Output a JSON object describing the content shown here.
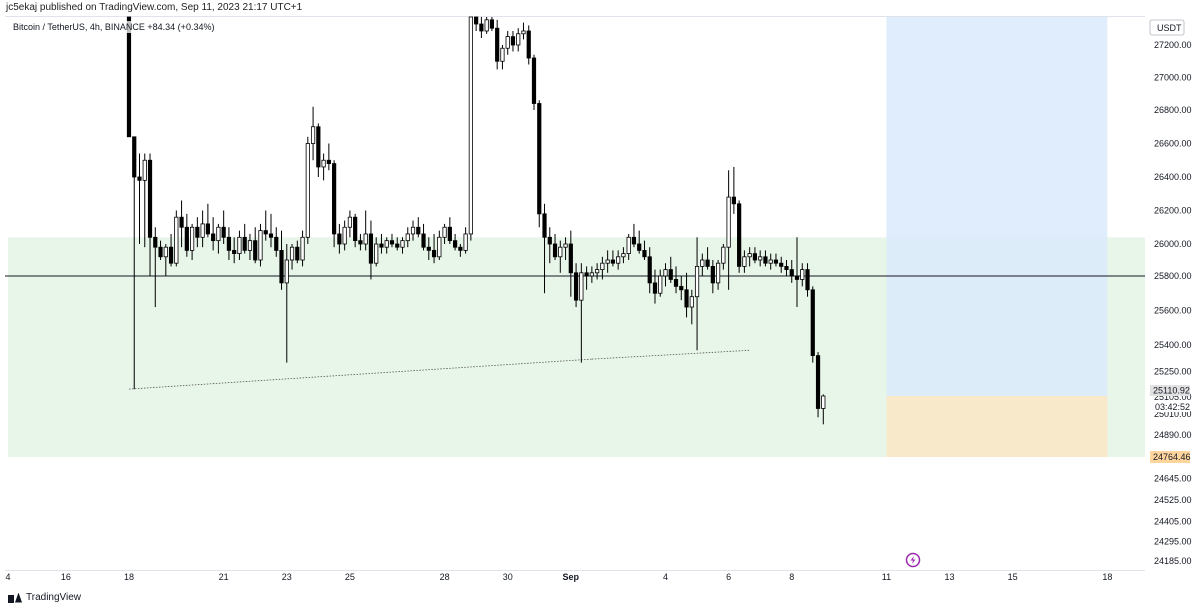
{
  "header": {
    "publisher_text": "jc5ekaj published on TradingView.com, Sep 11, 2023 21:17 UTC+1"
  },
  "legend": {
    "symbol_text": "Bitcoin / TetherUS, 4h, BINANCE",
    "change_text": "+84.34 (+0.34%)"
  },
  "footer": {
    "brand": "TradingView"
  },
  "colors": {
    "candle_up": "#ffffff",
    "candle_down": "#000000",
    "candle_border": "#000000",
    "demand_zone": "#e8f5e9",
    "target_zone": "#dbeafb",
    "stop_zone": "#fbe6c6",
    "price_marker_bg": "#e1e1e1",
    "stop_marker_bg": "#ffd59e"
  },
  "chart_data": {
    "type": "candlestick",
    "price_unit": "USDT",
    "y_ticks": [
      27200,
      27000,
      26800,
      26600,
      26400,
      26200,
      26000,
      25800,
      25600,
      25400,
      25250,
      25105,
      25010,
      24890,
      24645,
      24525,
      24405,
      24295,
      24185
    ],
    "y_tick_labels": [
      "27200.00",
      "27000.00",
      "26800.00",
      "26600.00",
      "26400.00",
      "26200.00",
      "26000.00",
      "25800.00",
      "25600.00",
      "25400.00",
      "25250.00",
      "25105.00",
      "25010.00",
      "24890.00",
      "24645.00",
      "24525.00",
      "24405.00",
      "24295.00",
      "24185.00"
    ],
    "x_ticks": [
      {
        "label": "4",
        "bar": 0
      },
      {
        "label": "16",
        "bar": 11
      },
      {
        "label": "18",
        "bar": 23
      },
      {
        "label": "21",
        "bar": 41
      },
      {
        "label": "23",
        "bar": 53
      },
      {
        "label": "25",
        "bar": 65
      },
      {
        "label": "28",
        "bar": 83
      },
      {
        "label": "30",
        "bar": 95
      },
      {
        "label": "Sep",
        "bar": 107,
        "bold": true
      },
      {
        "label": "4",
        "bar": 125
      },
      {
        "label": "6",
        "bar": 137
      },
      {
        "label": "8",
        "bar": 149
      },
      {
        "label": "11",
        "bar": 167
      },
      {
        "label": "13",
        "bar": 179
      },
      {
        "label": "15",
        "bar": 191
      },
      {
        "label": "18",
        "bar": 209
      }
    ],
    "price_markers": [
      {
        "label": "25110.92",
        "value": 25110.92,
        "style": "current"
      },
      {
        "label": "03:42:52",
        "value": 25050,
        "style": "countdown"
      },
      {
        "label": "24764.46",
        "value": 24764.46,
        "style": "stop"
      }
    ],
    "horizontal_line": 25800,
    "zones": [
      {
        "name": "demand",
        "start_bar": 0,
        "end_bar": 235,
        "top": 26040,
        "bottom": 24764.46
      },
      {
        "name": "target",
        "start_bar": 167,
        "end_bar": 209,
        "top": 27400,
        "bottom": 25110.92
      },
      {
        "name": "stop",
        "start_bar": 167,
        "end_bar": 209,
        "top": 25110.92,
        "bottom": 24764.46
      }
    ],
    "trendlines": [
      {
        "start_bar": 23,
        "start_price": 25150,
        "end_bar": 111,
        "end_price": 25320
      },
      {
        "start_bar": 111,
        "start_price": 25320,
        "end_bar": 141,
        "end_price": 25370
      }
    ],
    "candles": [
      [
        23,
        27400,
        27400,
        26640,
        26640
      ],
      [
        24,
        26640,
        26640,
        25150,
        26400
      ],
      [
        25,
        26400,
        26540,
        26000,
        26380
      ],
      [
        26,
        26380,
        26540,
        25980,
        26500
      ],
      [
        27,
        26500,
        26540,
        25800,
        26040
      ],
      [
        28,
        26040,
        26100,
        25620,
        25980
      ],
      [
        29,
        25980,
        26020,
        25900,
        25920
      ],
      [
        30,
        25920,
        26000,
        25800,
        25980
      ],
      [
        31,
        25980,
        26060,
        25860,
        25880
      ],
      [
        32,
        25880,
        26200,
        25860,
        26160
      ],
      [
        33,
        26160,
        26260,
        25980,
        26100
      ],
      [
        34,
        26100,
        26180,
        25920,
        25960
      ],
      [
        35,
        25960,
        26120,
        25900,
        26100
      ],
      [
        36,
        26100,
        26160,
        25980,
        26040
      ],
      [
        37,
        26040,
        26200,
        25980,
        26120
      ],
      [
        38,
        26120,
        26240,
        26040,
        26060
      ],
      [
        39,
        26060,
        26160,
        25960,
        26020
      ],
      [
        40,
        26020,
        26120,
        25940,
        26100
      ],
      [
        41,
        26100,
        26200,
        26000,
        26040
      ],
      [
        42,
        26040,
        26100,
        25900,
        25960
      ],
      [
        43,
        25960,
        26040,
        25880,
        25940
      ],
      [
        44,
        25940,
        26080,
        25900,
        26040
      ],
      [
        45,
        26040,
        26120,
        25940,
        25960
      ],
      [
        46,
        25960,
        26060,
        25900,
        26020
      ],
      [
        47,
        26020,
        26100,
        25880,
        25900
      ],
      [
        48,
        25900,
        26120,
        25860,
        26080
      ],
      [
        49,
        26080,
        26200,
        26020,
        26060
      ],
      [
        50,
        26060,
        26180,
        25980,
        26040
      ],
      [
        51,
        26040,
        26100,
        25920,
        25960
      ],
      [
        52,
        25960,
        26080,
        25720,
        25760
      ],
      [
        53,
        25760,
        26000,
        25300,
        25900
      ],
      [
        54,
        25900,
        26000,
        25840,
        25980
      ],
      [
        55,
        25980,
        26020,
        25880,
        25900
      ],
      [
        56,
        25900,
        26080,
        25860,
        26040
      ],
      [
        57,
        26040,
        26640,
        26000,
        26600
      ],
      [
        58,
        26600,
        26820,
        26500,
        26700
      ],
      [
        59,
        26700,
        26720,
        26400,
        26460
      ],
      [
        60,
        26460,
        26540,
        26380,
        26500
      ],
      [
        61,
        26500,
        26600,
        26440,
        26480
      ],
      [
        62,
        26480,
        26500,
        25980,
        26060
      ],
      [
        63,
        26060,
        26120,
        25940,
        26000
      ],
      [
        64,
        26000,
        26140,
        25960,
        26100
      ],
      [
        65,
        26100,
        26200,
        26040,
        26160
      ],
      [
        66,
        26160,
        26180,
        25980,
        26020
      ],
      [
        67,
        26020,
        26060,
        25960,
        26000
      ],
      [
        68,
        26000,
        26200,
        25960,
        26060
      ],
      [
        69,
        26060,
        26140,
        25780,
        25880
      ],
      [
        70,
        25880,
        26040,
        25860,
        26000
      ],
      [
        71,
        26000,
        26060,
        25940,
        25980
      ],
      [
        72,
        25980,
        26040,
        25940,
        26020
      ],
      [
        73,
        26020,
        26060,
        25980,
        26000
      ],
      [
        74,
        26000,
        26040,
        25960,
        25980
      ],
      [
        75,
        25980,
        26040,
        25940,
        26020
      ],
      [
        76,
        26020,
        26100,
        25980,
        26060
      ],
      [
        77,
        26060,
        26140,
        26020,
        26100
      ],
      [
        78,
        26100,
        26160,
        26040,
        26060
      ],
      [
        79,
        26060,
        26120,
        25960,
        25980
      ],
      [
        80,
        25980,
        26040,
        25900,
        25960
      ],
      [
        81,
        25960,
        26060,
        25880,
        25920
      ],
      [
        82,
        25920,
        26080,
        25900,
        26040
      ],
      [
        83,
        26040,
        26120,
        26000,
        26100
      ],
      [
        84,
        26100,
        26160,
        26000,
        26020
      ],
      [
        85,
        26020,
        26060,
        25960,
        25980
      ],
      [
        86,
        25980,
        26000,
        25920,
        25960
      ],
      [
        87,
        25960,
        26100,
        25940,
        26060
      ],
      [
        88,
        26060,
        27400,
        26020,
        27400
      ],
      [
        89,
        27400,
        27400,
        27300,
        27350
      ],
      [
        90,
        27350,
        27400,
        27250,
        27300
      ],
      [
        91,
        27300,
        27400,
        27280,
        27380
      ],
      [
        92,
        27380,
        27400,
        27300,
        27320
      ],
      [
        93,
        27320,
        27380,
        27050,
        27100
      ],
      [
        94,
        27100,
        27200,
        27050,
        27180
      ],
      [
        95,
        27180,
        27300,
        27140,
        27260
      ],
      [
        96,
        27260,
        27300,
        27160,
        27200
      ],
      [
        97,
        27200,
        27320,
        27160,
        27280
      ],
      [
        98,
        27280,
        27360,
        27240,
        27300
      ],
      [
        99,
        27300,
        27340,
        27080,
        27120
      ],
      [
        100,
        27120,
        27140,
        26800,
        26840
      ],
      [
        101,
        26840,
        26860,
        26100,
        26180
      ],
      [
        102,
        26180,
        26240,
        25700,
        26040
      ],
      [
        103,
        26040,
        26100,
        25880,
        26000
      ],
      [
        104,
        26000,
        26060,
        25900,
        25920
      ],
      [
        105,
        25920,
        26020,
        25820,
        25980
      ],
      [
        106,
        25980,
        26040,
        25900,
        26000
      ],
      [
        107,
        26000,
        26080,
        25680,
        25820
      ],
      [
        108,
        25820,
        25880,
        25620,
        25660
      ],
      [
        109,
        25660,
        25880,
        25300,
        25820
      ],
      [
        110,
        25820,
        25860,
        25720,
        25800
      ],
      [
        111,
        25800,
        25860,
        25760,
        25820
      ],
      [
        112,
        25820,
        25880,
        25780,
        25840
      ],
      [
        113,
        25840,
        25920,
        25780,
        25880
      ],
      [
        114,
        25880,
        25960,
        25820,
        25900
      ],
      [
        115,
        25900,
        25960,
        25860,
        25880
      ],
      [
        116,
        25880,
        25960,
        25840,
        25920
      ],
      [
        117,
        25920,
        25980,
        25880,
        25940
      ],
      [
        118,
        25940,
        26060,
        25900,
        26040
      ],
      [
        119,
        26040,
        26120,
        25980,
        26000
      ],
      [
        120,
        26000,
        26080,
        25940,
        25960
      ],
      [
        121,
        25960,
        26020,
        25900,
        25920
      ],
      [
        122,
        25920,
        25980,
        25700,
        25760
      ],
      [
        123,
        25760,
        25840,
        25640,
        25700
      ],
      [
        124,
        25700,
        25840,
        25680,
        25800
      ],
      [
        125,
        25800,
        25880,
        25740,
        25840
      ],
      [
        126,
        25840,
        25920,
        25760,
        25780
      ],
      [
        127,
        25780,
        25860,
        25700,
        25740
      ],
      [
        128,
        25740,
        25800,
        25660,
        25720
      ],
      [
        129,
        25720,
        25820,
        25560,
        25620
      ],
      [
        130,
        25620,
        25720,
        25520,
        25680
      ],
      [
        131,
        25680,
        26040,
        25370,
        25860
      ],
      [
        132,
        25860,
        25940,
        25800,
        25900
      ],
      [
        133,
        25900,
        25980,
        25840,
        25860
      ],
      [
        134,
        25860,
        25900,
        25700,
        25760
      ],
      [
        135,
        25760,
        25900,
        25720,
        25880
      ],
      [
        136,
        25880,
        26000,
        25840,
        25980
      ],
      [
        137,
        25980,
        26440,
        25720,
        26280
      ],
      [
        138,
        26280,
        26460,
        26180,
        26240
      ],
      [
        139,
        26240,
        26260,
        25820,
        25860
      ],
      [
        140,
        25860,
        25960,
        25820,
        25920
      ],
      [
        141,
        25920,
        25980,
        25860,
        25940
      ],
      [
        142,
        25940,
        25980,
        25880,
        25900
      ],
      [
        143,
        25900,
        25960,
        25860,
        25920
      ],
      [
        144,
        25920,
        25960,
        25860,
        25880
      ],
      [
        145,
        25880,
        25940,
        25840,
        25900
      ],
      [
        146,
        25900,
        25940,
        25860,
        25880
      ],
      [
        147,
        25880,
        25920,
        25820,
        25860
      ],
      [
        148,
        25860,
        25900,
        25800,
        25840
      ],
      [
        149,
        25840,
        25900,
        25760,
        25800
      ],
      [
        150,
        25800,
        26040,
        25620,
        25780
      ],
      [
        151,
        25780,
        25880,
        25740,
        25840
      ],
      [
        152,
        25840,
        25880,
        25680,
        25720
      ],
      [
        153,
        25720,
        25740,
        25300,
        25340
      ],
      [
        154,
        25340,
        25360,
        24990,
        25040
      ],
      [
        155,
        25040,
        25120,
        24950,
        25110.92
      ]
    ],
    "bar_origin_index": 0
  }
}
